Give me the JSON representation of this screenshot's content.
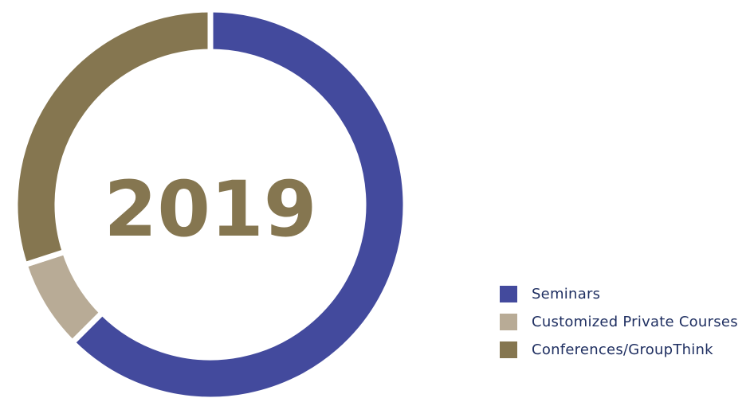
{
  "chart_data": {
    "type": "pie",
    "center_label": "2019",
    "slices": [
      {
        "label": "Seminars",
        "value": 62.5,
        "color": "#434a9d"
      },
      {
        "label": "Customized Private Courses",
        "value": 7.5,
        "color": "#b8ab96"
      },
      {
        "label": "Conferences/GroupThink",
        "value": 30.0,
        "color": "#857650"
      }
    ],
    "legend_position": "bottom-right",
    "center_label_color": "#857650",
    "legend_text_color": "#1f2f61"
  }
}
